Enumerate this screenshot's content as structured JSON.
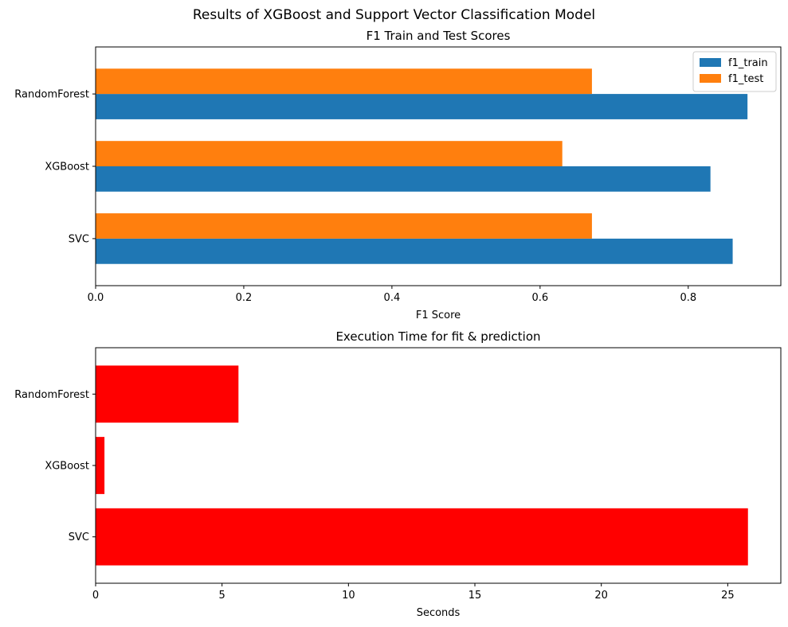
{
  "figure": {
    "suptitle": "Results of XGBoost and Support Vector Classification Model"
  },
  "chart_data": [
    {
      "type": "bar",
      "orientation": "horizontal",
      "title": "F1 Train and Test Scores",
      "xlabel": "F1 Score",
      "ylabel": "",
      "categories": [
        "SVC",
        "XGBoost",
        "RandomForest"
      ],
      "series": [
        {
          "name": "f1_train",
          "values": [
            0.86,
            0.83,
            0.88
          ],
          "color": "#1f77b4"
        },
        {
          "name": "f1_test",
          "values": [
            0.67,
            0.63,
            0.67
          ],
          "color": "#ff7f0e"
        }
      ],
      "xlim": [
        0,
        0.925
      ],
      "xticks": [
        0.0,
        0.2,
        0.4,
        0.6,
        0.8
      ],
      "xtick_labels": [
        "0.0",
        "0.2",
        "0.4",
        "0.6",
        "0.8"
      ],
      "grid": false,
      "legend": "upper right"
    },
    {
      "type": "bar",
      "orientation": "horizontal",
      "title": "Execution Time for fit & prediction",
      "xlabel": "Seconds",
      "ylabel": "",
      "categories": [
        "SVC",
        "XGBoost",
        "RandomForest"
      ],
      "values": [
        25.8,
        0.35,
        5.65
      ],
      "color": "#ff0000",
      "xlim": [
        0,
        27.1
      ],
      "xticks": [
        0,
        5,
        10,
        15,
        20,
        25
      ],
      "xtick_labels": [
        "0",
        "5",
        "10",
        "15",
        "20",
        "25"
      ],
      "grid": false
    }
  ]
}
